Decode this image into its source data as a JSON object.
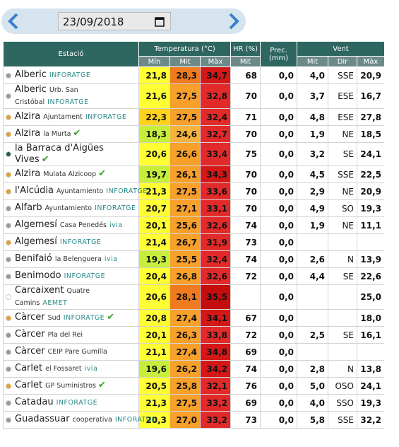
{
  "date": "23/09/2018",
  "table": {
    "header": {
      "station": "Estació",
      "temperature": "Temperatura (°C)",
      "humidity": "HR (%)",
      "precipitation": "Prec. (mm)",
      "wind": "Vent",
      "sub": [
        "Mín",
        "Mit",
        "Màx",
        "Mit",
        "Mit",
        "Dir",
        "Màx"
      ]
    },
    "rows": [
      {
        "station": "Alberic",
        "detail": null,
        "network": "INFORATGE",
        "check": false,
        "dot": "#999999",
        "cells": [
          "21,8",
          "28,3",
          "34,7",
          "68",
          "0,0",
          "4,0",
          "SSE",
          "20,9"
        ]
      },
      {
        "station": "Alberic",
        "detail": "Urb. San Cristóbal",
        "network": "INFORATGE",
        "check": false,
        "dot": "#999999",
        "cells": [
          "21,6",
          "27,5",
          "32,8",
          "70",
          "0,0",
          "3,7",
          "ESE",
          "16,7"
        ]
      },
      {
        "station": "Alzira",
        "detail": "Ajuntament",
        "network": "INFORATGE",
        "check": false,
        "dot": "#e8a020",
        "cells": [
          "22,3",
          "27,5",
          "32,4",
          "71",
          "0,0",
          "4,8",
          "ESE",
          "27,8"
        ]
      },
      {
        "station": "Alzira",
        "detail": "la Murta",
        "network": null,
        "check": true,
        "dot": "#e8a020",
        "cells": [
          "18,3",
          "24,6",
          "32,7",
          "70",
          "0,0",
          "1,9",
          "NE",
          "18,5"
        ]
      },
      {
        "station": "la Barraca d'Aigües Vives",
        "detail": null,
        "network": null,
        "check": true,
        "dot": "#1e5e50",
        "cells": [
          "20,6",
          "26,6",
          "33,4",
          "75",
          "0,0",
          "3,2",
          "SE",
          "24,1"
        ]
      },
      {
        "station": "Alzira",
        "detail": "Mulata Alzicoop",
        "network": null,
        "check": true,
        "dot": "#e8a020",
        "cells": [
          "19,7",
          "26,1",
          "34,3",
          "70",
          "0,0",
          "4,5",
          "SSE",
          "22,5"
        ]
      },
      {
        "station": "l'Alcúdia",
        "detail": "Ayuntamiento",
        "network": "INFORATGE",
        "check": false,
        "dot": "#e8a020",
        "cells": [
          "21,3",
          "27,5",
          "33,6",
          "70",
          "0,0",
          "2,9",
          "NE",
          "20,9"
        ]
      },
      {
        "station": "Alfarb",
        "detail": "Ayuntamiento",
        "network": "INFORATGE",
        "check": false,
        "dot": "#999999",
        "cells": [
          "20,7",
          "27,1",
          "33,1",
          "70",
          "0,0",
          "4,9",
          "SO",
          "19,3"
        ]
      },
      {
        "station": "Algemesí",
        "detail": "Casa Penedés",
        "network": "ivia",
        "check": false,
        "dot": "#999999",
        "cells": [
          "20,1",
          "25,6",
          "32,6",
          "74",
          "0,0",
          "1,9",
          "NE",
          "11,1"
        ]
      },
      {
        "station": "Algemesí",
        "detail": null,
        "network": "INFORATGE",
        "check": false,
        "dot": "#e8a020",
        "cells": [
          "21,4",
          "26,7",
          "31,9",
          "73",
          "0,0",
          null,
          null,
          null
        ]
      },
      {
        "station": "Benifaió",
        "detail": "la Belenguera",
        "network": "ivia",
        "check": false,
        "dot": "#999999",
        "cells": [
          "19,3",
          "25,5",
          "32,4",
          "74",
          "0,0",
          "2,6",
          "N",
          "13,9"
        ]
      },
      {
        "station": "Benimodo",
        "detail": null,
        "network": "INFORATGE",
        "check": false,
        "dot": "#999999",
        "cells": [
          "20,4",
          "26,8",
          "32,6",
          "72",
          "0,0",
          "4,4",
          "SE",
          "22,6"
        ]
      },
      {
        "station": "Carcaixent",
        "detail": "Quatre Camins",
        "network": "AEMET",
        "check": false,
        "dot": "#ffffff",
        "cells": [
          "20,6",
          "28,1",
          "35,5",
          null,
          "0,0",
          null,
          null,
          "25,0"
        ]
      },
      {
        "station": "Càrcer",
        "detail": "Sud",
        "network": "INFORATGE",
        "check": true,
        "dot": "#e8a020",
        "cells": [
          "20,8",
          "27,4",
          "34,1",
          "67",
          "0,0",
          null,
          null,
          "18,0"
        ]
      },
      {
        "station": "Càrcer",
        "detail": "Pla del Rei",
        "network": null,
        "check": false,
        "dot": "#999999",
        "cells": [
          "20,1",
          "26,3",
          "33,8",
          "72",
          "0,0",
          "2,5",
          "SE",
          "16,1"
        ]
      },
      {
        "station": "Càrcer",
        "detail": "CEIP Pare Gumilla",
        "network": null,
        "check": false,
        "dot": "#999999",
        "cells": [
          "21,1",
          "27,4",
          "34,8",
          "69",
          "0,0",
          null,
          null,
          null
        ]
      },
      {
        "station": "Carlet",
        "detail": "el Fossaret",
        "network": "ivia",
        "check": false,
        "dot": "#999999",
        "cells": [
          "19,6",
          "26,2",
          "34,2",
          "74",
          "0,0",
          "2,8",
          "N",
          "13,8"
        ]
      },
      {
        "station": "Carlet",
        "detail": "GP Suministros",
        "network": null,
        "check": true,
        "dot": "#e8a020",
        "cells": [
          "20,5",
          "25,8",
          "32,1",
          "76",
          "0,0",
          "5,0",
          "OSO",
          "24,1"
        ]
      },
      {
        "station": "Catadau",
        "detail": null,
        "network": "INFORATGE",
        "check": false,
        "dot": "#999999",
        "cells": [
          "21,3",
          "27,5",
          "33,2",
          "69",
          "0,0",
          "4,0",
          "SSO",
          "19,3"
        ]
      },
      {
        "station": "Guadassuar",
        "detail": "cooperativa",
        "network": "INFORATGE",
        "check": false,
        "dot": "#999999",
        "cells": [
          "20,3",
          "27,0",
          "33,2",
          "73",
          "0,0",
          "5,8",
          "SSE",
          "32,2"
        ]
      }
    ]
  }
}
